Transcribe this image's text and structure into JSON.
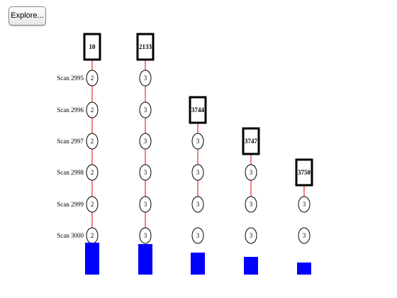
{
  "toolbar": {
    "explore_label": "Explore..."
  },
  "colors": {
    "edge": "#e00000",
    "bar": "#0000ff",
    "box_border": "#000000",
    "node_border": "#000000"
  },
  "rows": [
    {
      "label": "Scan 2995"
    },
    {
      "label": "Scan 2996"
    },
    {
      "label": "Scan 2997"
    },
    {
      "label": "Scan 2998"
    },
    {
      "label": "Scan 2999"
    },
    {
      "label": "Scan 3000"
    }
  ],
  "columns": [
    {
      "header": "10",
      "start_row": 0,
      "nodes": [
        "2",
        "2",
        "2",
        "2",
        "2",
        "2"
      ],
      "bar_value": 45
    },
    {
      "header": "2133",
      "start_row": 0,
      "nodes": [
        "3",
        "3",
        "3",
        "3",
        "3",
        "3"
      ],
      "bar_value": 43
    },
    {
      "header": "3744",
      "start_row": 1,
      "nodes": [
        "3",
        "3",
        "3",
        "3"
      ],
      "bar_value": 31
    },
    {
      "header": "3747",
      "start_row": 2,
      "nodes": [
        "3",
        "3",
        "3"
      ],
      "bar_value": 25
    },
    {
      "header": "3750",
      "start_row": 3,
      "nodes": [
        "3",
        "3"
      ],
      "bar_value": 17
    }
  ]
}
